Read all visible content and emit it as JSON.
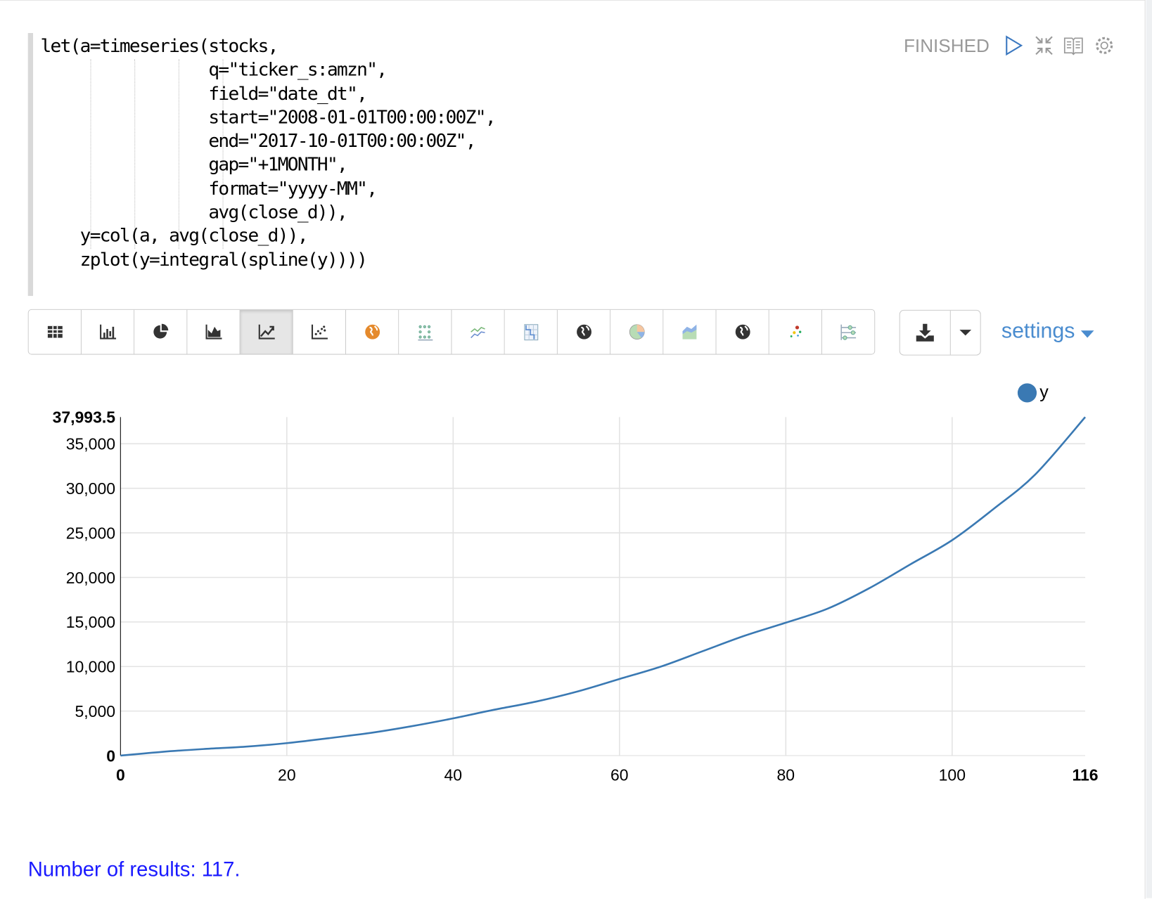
{
  "paragraph": {
    "code_lines": [
      "let(a=timeseries(stocks,",
      "                 q=\"ticker_s:amzn\",",
      "                 field=\"date_dt\",",
      "                 start=\"2008-01-01T00:00:00Z\",",
      "                 end=\"2017-10-01T00:00:00Z\",",
      "                 gap=\"+1MONTH\",",
      "                 format=\"yyyy-MM\",",
      "                 avg(close_d)),",
      "    y=col(a, avg(close_d)),",
      "    zplot(y=integral(spline(y))))"
    ],
    "status": "FINISHED",
    "controls": [
      "run-icon",
      "collapse-icon",
      "book-icon",
      "gear-icon"
    ]
  },
  "toolbar": {
    "buttons": [
      "table-icon",
      "bar-chart-icon",
      "pie-chart-icon",
      "area-chart-icon",
      "line-chart-icon",
      "scatter-chart-icon",
      "globe-orange-icon",
      "dot-matrix-icon",
      "multi-line-icon",
      "heatmap-icon",
      "globe-icon",
      "pie-color-icon",
      "stacked-area-icon",
      "globe-dark-icon",
      "bubble-icon",
      "parallel-sliders-icon"
    ],
    "active": "line-chart-icon",
    "download": "download-icon",
    "settings_label": "settings"
  },
  "chart_data": {
    "type": "line",
    "series": [
      {
        "name": "y",
        "color": "#3a79b3",
        "x": [
          0,
          5,
          10,
          15,
          20,
          25,
          30,
          35,
          40,
          45,
          50,
          55,
          60,
          65,
          70,
          75,
          80,
          85,
          90,
          95,
          100,
          105,
          110,
          116
        ],
        "y": [
          0,
          420,
          740,
          1000,
          1400,
          1950,
          2540,
          3300,
          4180,
          5160,
          6070,
          7210,
          8600,
          10000,
          11720,
          13440,
          14920,
          16480,
          18770,
          21480,
          24180,
          27700,
          31560,
          37993.5
        ]
      }
    ],
    "xlim": [
      0,
      116
    ],
    "ylim": [
      0,
      37993.5
    ],
    "x_ticks": [
      "0",
      "20",
      "40",
      "60",
      "80",
      "100",
      "116"
    ],
    "y_ticks": [
      "0",
      "5,000",
      "10,000",
      "15,000",
      "20,000",
      "25,000",
      "30,000",
      "35,000",
      "37,993.5"
    ],
    "grid": true,
    "legend": "top-right"
  },
  "footer": {
    "results": "Number of results: 117."
  }
}
